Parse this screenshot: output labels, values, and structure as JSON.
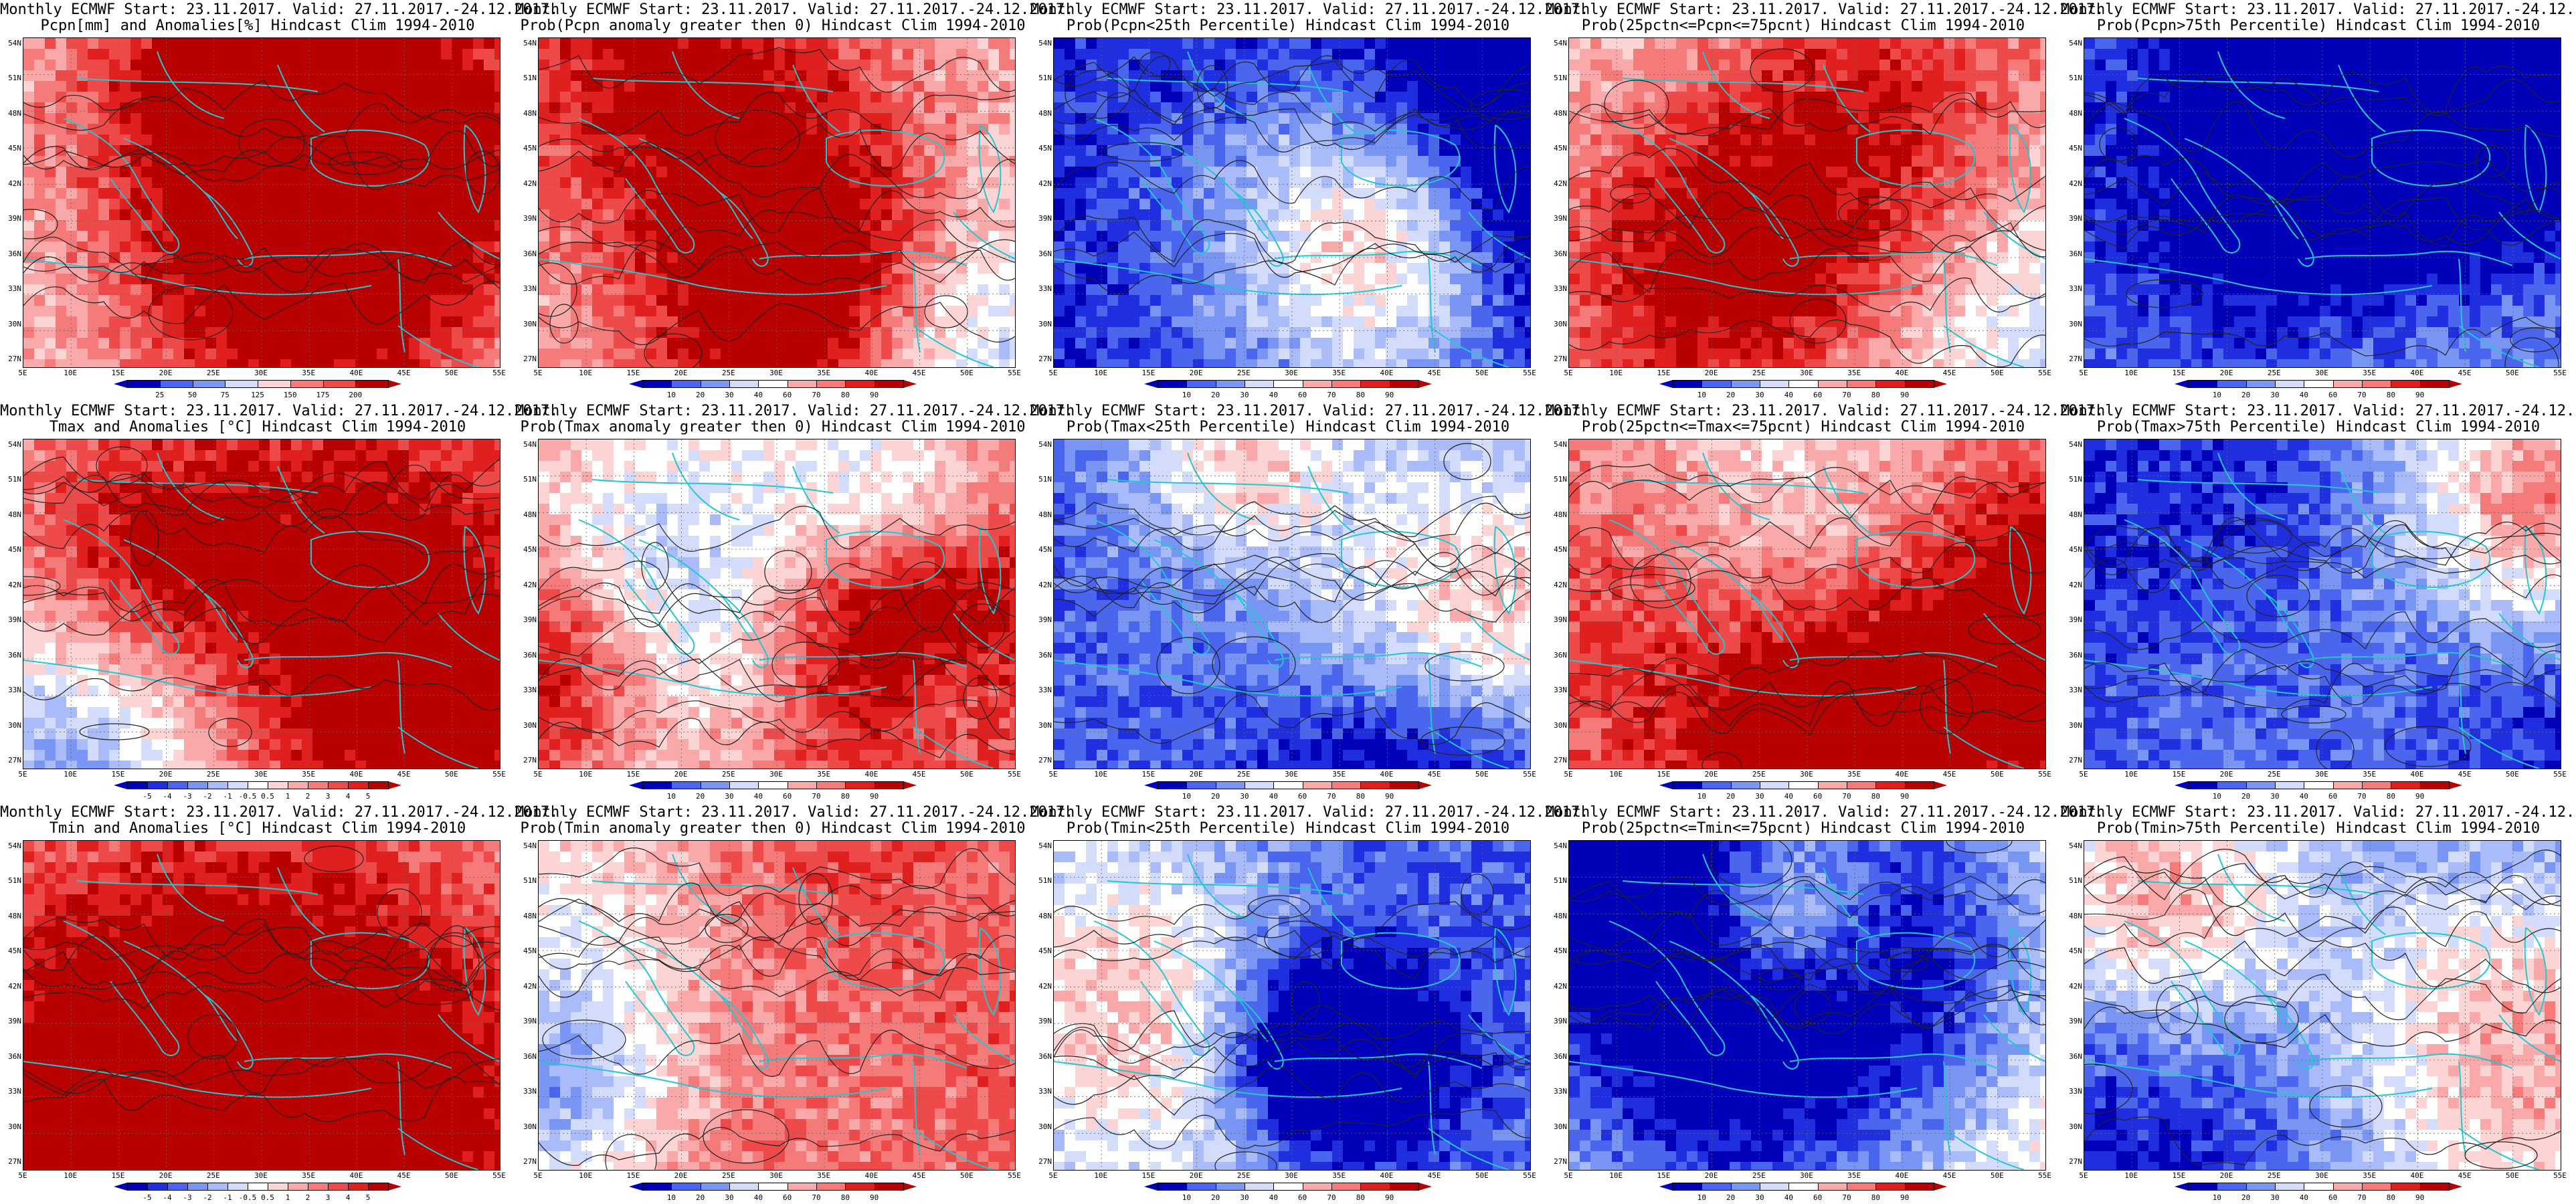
{
  "header_line": "Monthly ECMWF Start: 23.11.2017. Valid: 27.11.2017.-24.12.2017.",
  "lat_labels": [
    "54N",
    "51N",
    "48N",
    "45N",
    "42N",
    "39N",
    "36N",
    "33N",
    "30N",
    "27N"
  ],
  "lon_labels": [
    "5E",
    "10E",
    "15E",
    "20E",
    "25E",
    "30E",
    "35E",
    "40E",
    "45E",
    "50E",
    "55E"
  ],
  "colors": {
    "blues": [
      "#0000b8",
      "#1f2fe0",
      "#4a66ee",
      "#7a96f5",
      "#a9bbf9",
      "#d4dcfc"
    ],
    "white": "#ffffff",
    "reds": [
      "#fcd4d4",
      "#f9a9a9",
      "#f57a7a",
      "#ee4a4a",
      "#e01f1f",
      "#b80000"
    ],
    "coast": "#22c8d0",
    "contour": "#222222"
  },
  "colorbars": {
    "anom_pct": [
      "25",
      "50",
      "75",
      "125",
      "150",
      "175",
      "200"
    ],
    "anom_deg": [
      "-5",
      "-4",
      "-3",
      "-2",
      "-1",
      "-0.5",
      "0.5",
      "1",
      "2",
      "3",
      "4",
      "5"
    ],
    "prob": [
      "10",
      "20",
      "30",
      "40",
      "60",
      "70",
      "80",
      "90"
    ]
  },
  "panels": [
    {
      "title2": "Pcpn[mm] and Anomalies[%] Hindcast Clim 1994-2010",
      "cbar": "anom_pct",
      "bias": 0.2
    },
    {
      "title2": "Prob(Pcpn anomaly greater then 0) Hindcast Clim 1994-2010",
      "cbar": "prob",
      "bias": 0.3
    },
    {
      "title2": "Prob(Pcpn<25th Percentile) Hindcast Clim 1994-2010",
      "cbar": "prob",
      "bias": -0.9
    },
    {
      "title2": "Prob(25pctn<=Pcpn<=75pcnt) Hindcast Clim 1994-2010",
      "cbar": "prob",
      "bias": 0.1
    },
    {
      "title2": "Prob(Pcpn>75th Percentile) Hindcast Clim 1994-2010",
      "cbar": "prob",
      "bias": -0.6
    },
    {
      "title2": "Tmax and Anomalies [°C] Hindcast Clim 1994-2010",
      "cbar": "anom_deg",
      "bias": 0.2
    },
    {
      "title2": "Prob(Tmax anomaly greater then 0) Hindcast Clim 1994-2010",
      "cbar": "prob",
      "bias": 0.45
    },
    {
      "title2": "Prob(Tmax<25th Percentile) Hindcast Clim 1994-2010",
      "cbar": "prob",
      "bias": -0.7
    },
    {
      "title2": "Prob(25pctn<=Tmax<=75pcnt) Hindcast Clim 1994-2010",
      "cbar": "prob",
      "bias": 0.2
    },
    {
      "title2": "Prob(Tmax>75th Percentile) Hindcast Clim 1994-2010",
      "cbar": "prob",
      "bias": -0.75
    },
    {
      "title2": "Tmin and Anomalies [°C] Hindcast Clim 1994-2010",
      "cbar": "anom_deg",
      "bias": 0.35
    },
    {
      "title2": "Prob(Tmin anomaly greater then 0) Hindcast Clim 1994-2010",
      "cbar": "prob",
      "bias": 0.5
    },
    {
      "title2": "Prob(Tmin<25th Percentile) Hindcast Clim 1994-2010",
      "cbar": "prob",
      "bias": -0.7
    },
    {
      "title2": "Prob(25pctn<=Tmin<=75pcnt) Hindcast Clim 1994-2010",
      "cbar": "prob",
      "bias": 0.15
    },
    {
      "title2": "Prob(Tmin>75th Percentile) Hindcast Clim 1994-2010",
      "cbar": "prob",
      "bias": -0.7
    }
  ]
}
